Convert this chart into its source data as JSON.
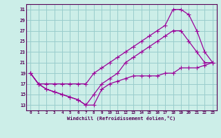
{
  "xlabel": "Windchill (Refroidissement éolien,°C)",
  "bg_color": "#cceee8",
  "grid_color": "#99cccc",
  "line_color": "#990099",
  "xlim": [
    -0.5,
    23.5
  ],
  "ylim": [
    12,
    32
  ],
  "xticks": [
    0,
    1,
    2,
    3,
    4,
    5,
    6,
    7,
    8,
    9,
    10,
    11,
    12,
    13,
    14,
    15,
    16,
    17,
    18,
    19,
    20,
    21,
    22,
    23
  ],
  "yticks": [
    13,
    15,
    17,
    19,
    21,
    23,
    25,
    27,
    29,
    31
  ],
  "line1_x": [
    0,
    1,
    2,
    3,
    4,
    5,
    6,
    7,
    8,
    9,
    10,
    11,
    12,
    13,
    14,
    15,
    16,
    17,
    18,
    19,
    20,
    21,
    22,
    23
  ],
  "line1_y": [
    19,
    17,
    16,
    15.5,
    15,
    14.5,
    14,
    13,
    15,
    17,
    18,
    19,
    21,
    22,
    23,
    24,
    25,
    26,
    27,
    27,
    25,
    23,
    21,
    21
  ],
  "line2_x": [
    0,
    1,
    2,
    3,
    4,
    5,
    6,
    7,
    8,
    9,
    10,
    11,
    12,
    13,
    14,
    15,
    16,
    17,
    18,
    19,
    20,
    21,
    22,
    23
  ],
  "line2_y": [
    19,
    17,
    17,
    17,
    17,
    17,
    17,
    17,
    19,
    20,
    21,
    22,
    23,
    24,
    25,
    26,
    27,
    28,
    31,
    31,
    30,
    27,
    23,
    21
  ],
  "line3_x": [
    0,
    1,
    2,
    3,
    4,
    5,
    6,
    7,
    8,
    9,
    10,
    11,
    12,
    13,
    14,
    15,
    16,
    17,
    18,
    19,
    20,
    21,
    22,
    23
  ],
  "line3_y": [
    19,
    17,
    16,
    15.5,
    15,
    14.5,
    14,
    13,
    13,
    16,
    17,
    17.5,
    18,
    18.5,
    18.5,
    18.5,
    18.5,
    19,
    19,
    20,
    20,
    20,
    20.5,
    21
  ]
}
